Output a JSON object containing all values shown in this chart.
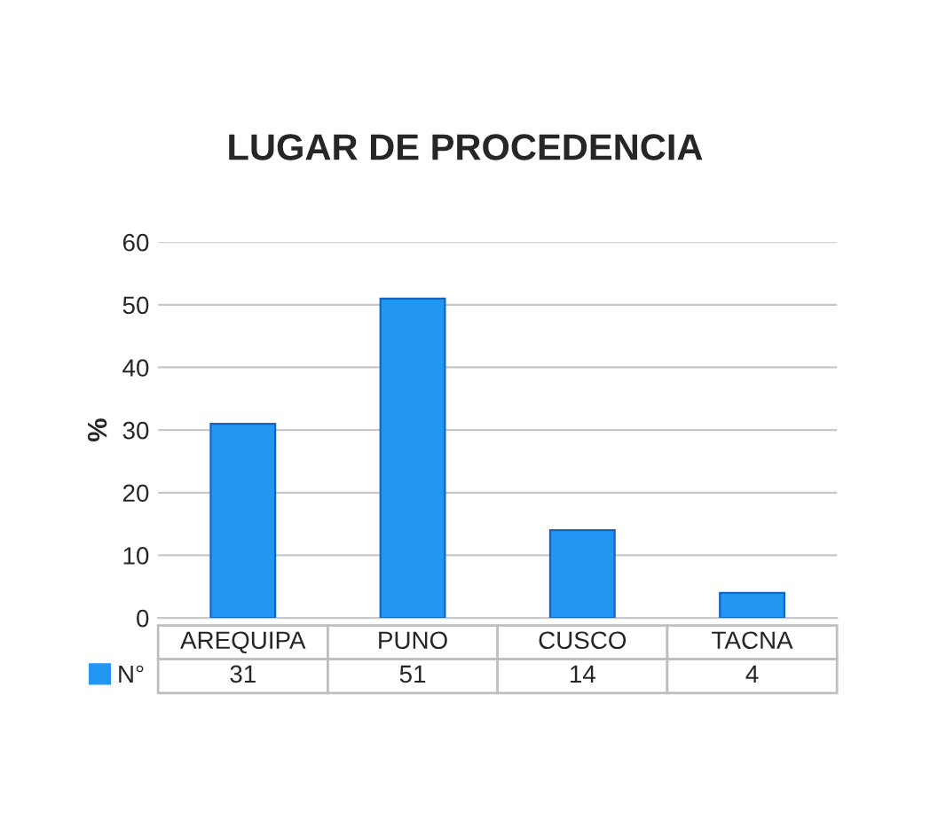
{
  "chart_data": {
    "type": "bar",
    "title": "LUGAR DE PROCEDENCIA",
    "ylabel": "%",
    "categories": [
      "AREQUIPA",
      "PUNO",
      "CUSCO",
      "TACNA"
    ],
    "series": [
      {
        "name": "N°",
        "color": "#2196f3",
        "values": [
          31,
          51,
          14,
          4
        ]
      }
    ],
    "ylim": [
      0,
      60
    ],
    "yticks": [
      0,
      10,
      20,
      30,
      40,
      50,
      60
    ],
    "grid": "y",
    "legend": "bottom",
    "data_labels": true
  }
}
